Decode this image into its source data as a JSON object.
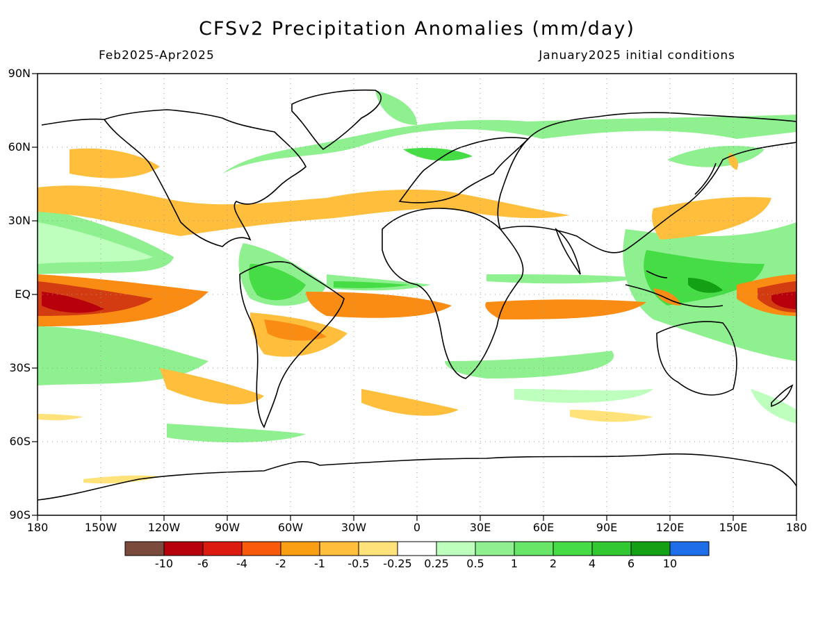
{
  "title": "CFSv2 Precipitation Anomalies (mm/day)",
  "period": "Feb2025-Apr2025",
  "initial_conditions": "January2025 initial conditions",
  "lat_labels": [
    "90N",
    "60N",
    "30N",
    "EQ",
    "30S",
    "60S",
    "90S"
  ],
  "lon_labels": [
    "180",
    "150W",
    "120W",
    "90W",
    "60W",
    "30W",
    "0",
    "30E",
    "60E",
    "90E",
    "120E",
    "150E",
    "180"
  ],
  "colorbar": {
    "labels": [
      "-10",
      "-6",
      "-4",
      "-2",
      "-1",
      "-0.5",
      "-0.25",
      "0.25",
      "0.5",
      "1",
      "2",
      "4",
      "6",
      "10"
    ],
    "colors": [
      "#7a4a3c",
      "#b8000c",
      "#dc1a10",
      "#fa5a0c",
      "#fa9e14",
      "#ffbe3c",
      "#ffe27a",
      "#ffffff",
      "#beffbe",
      "#8ef08e",
      "#68e668",
      "#46dc46",
      "#32c832",
      "#14a014",
      "#1e6eea"
    ]
  },
  "colors": {
    "strong_dry": "#d23c10",
    "dry": "#fa8c14",
    "mild_dry": "#ffbe3c",
    "light_dry": "#ffe27a",
    "light_wet": "#beffbe",
    "wet": "#8ef08e",
    "strong_wet": "#46dc46",
    "very_wet": "#14a014"
  }
}
